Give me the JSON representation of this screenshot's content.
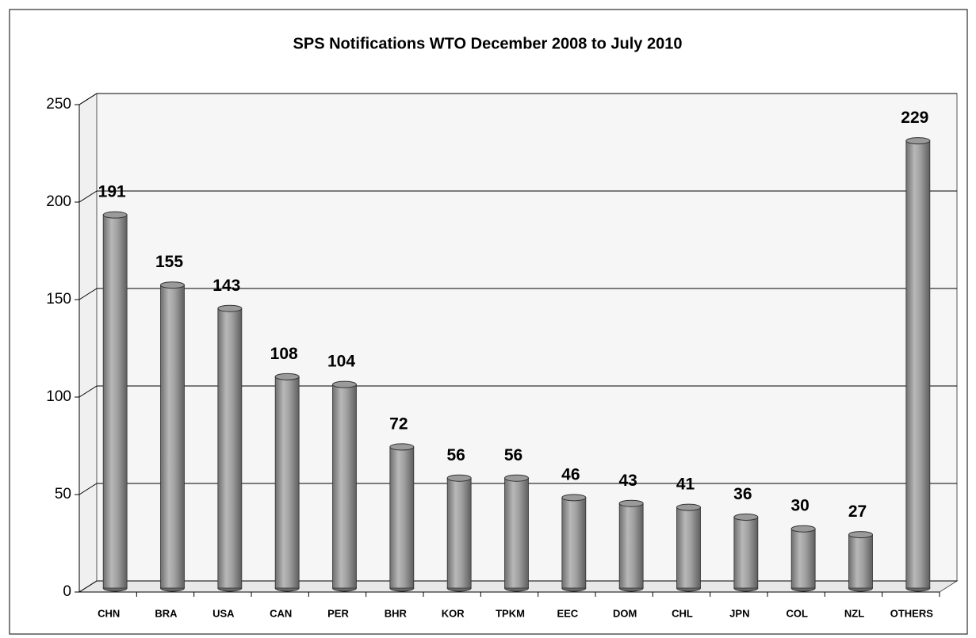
{
  "chart_data": {
    "type": "bar",
    "title": "SPS Notifications WTO December 2008 to July 2010",
    "categories": [
      "CHN",
      "BRA",
      "USA",
      "CAN",
      "PER",
      "BHR",
      "KOR",
      "TPKM",
      "EEC",
      "DOM",
      "CHL",
      "JPN",
      "COL",
      "NZL",
      "OTHERS"
    ],
    "values": [
      191,
      155,
      143,
      108,
      104,
      72,
      56,
      56,
      46,
      43,
      41,
      36,
      30,
      27,
      229
    ],
    "color": "#9a9a9a",
    "ylim": [
      0,
      250
    ],
    "yticks": [
      0,
      50,
      100,
      150,
      200,
      250
    ],
    "grid": true
  }
}
